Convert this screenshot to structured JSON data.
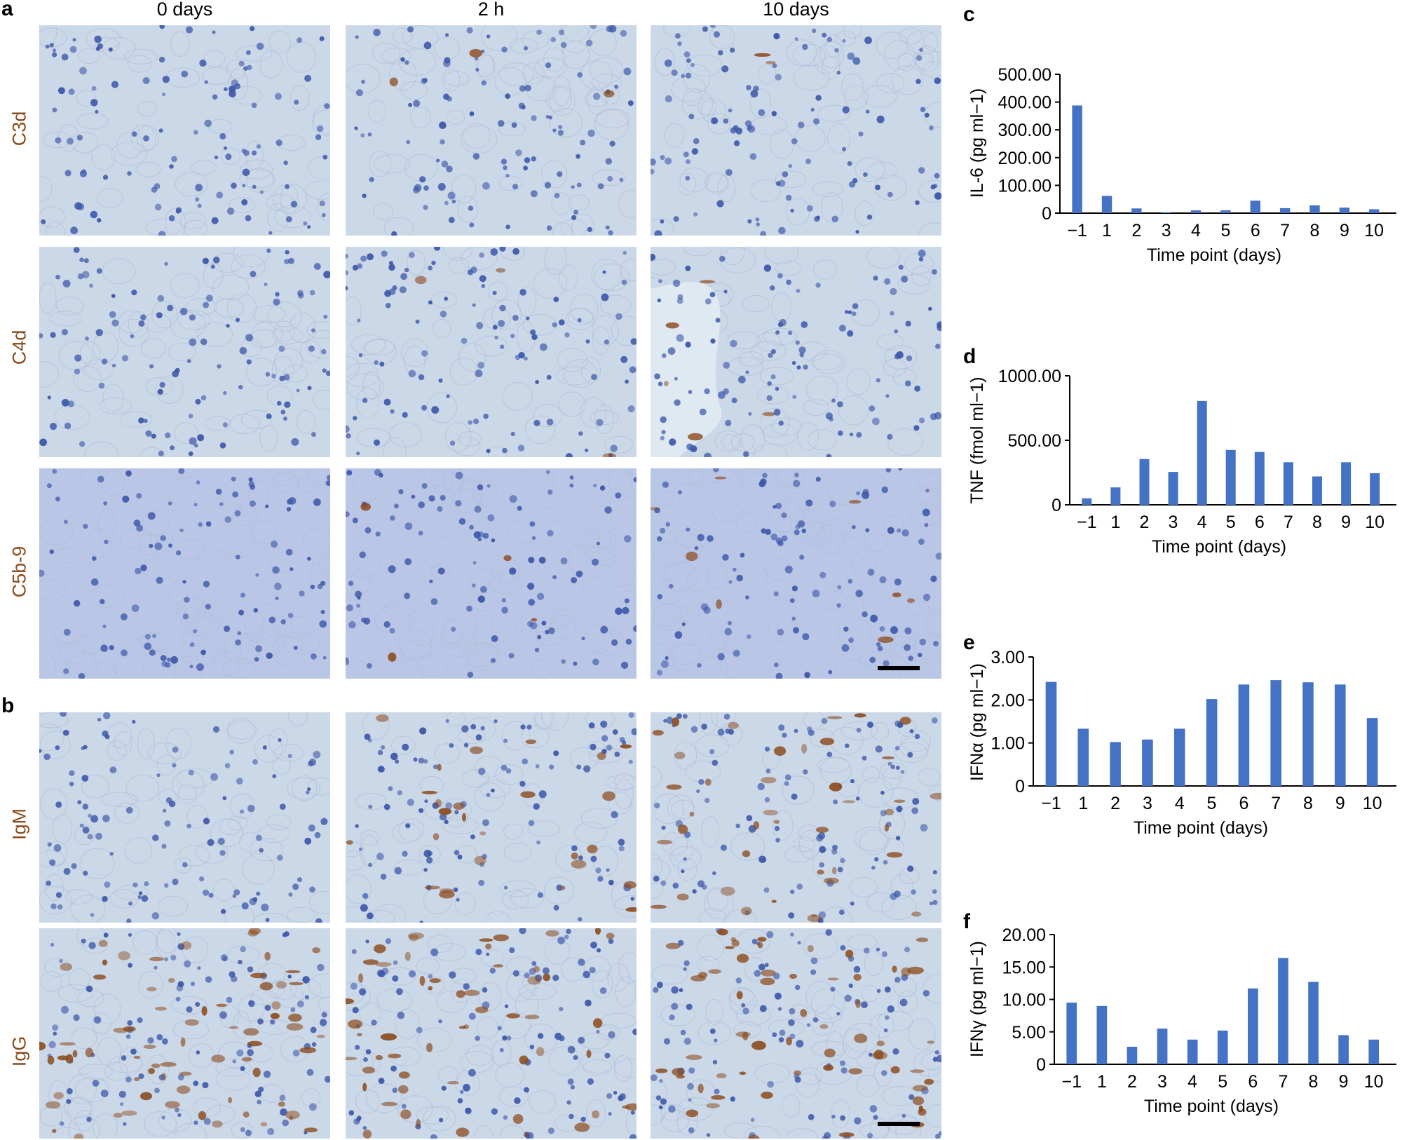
{
  "panel_a": {
    "letter": "a",
    "columns": [
      "0 days",
      "2 h",
      "10 days"
    ],
    "rows": [
      "C3d",
      "C4d",
      "C5b-9"
    ]
  },
  "panel_b": {
    "letter": "b",
    "rows": [
      "IgM",
      "IgG"
    ]
  },
  "colors": {
    "bar": "#4472c4",
    "row_label": "#8a4a1a",
    "tissue_background": "#cbd8e8",
    "nucleus": "#3d57a8",
    "stain_brown": "#8b4a1c"
  },
  "chart_data": [
    {
      "panel": "c",
      "type": "bar",
      "categories": [
        "−1",
        "1",
        "2",
        "3",
        "4",
        "5",
        "6",
        "7",
        "8",
        "9",
        "10"
      ],
      "values": [
        388,
        62,
        17,
        3,
        10,
        10,
        45,
        18,
        28,
        20,
        14
      ],
      "ylim": [
        0,
        500
      ],
      "yticks": [
        "0",
        "100.00",
        "200.00",
        "300.00",
        "400.00",
        "500.00"
      ],
      "ylabel": "IL-6 (pg ml−1)",
      "xlabel": "Time point (days)"
    },
    {
      "panel": "d",
      "type": "bar",
      "categories": [
        "−1",
        "1",
        "2",
        "3",
        "4",
        "5",
        "6",
        "7",
        "8",
        "9",
        "10"
      ],
      "values": [
        50,
        135,
        355,
        255,
        805,
        425,
        410,
        330,
        220,
        330,
        245
      ],
      "ylim": [
        0,
        1000
      ],
      "yticks": [
        "0",
        "500.00",
        "1000.00"
      ],
      "ylabel": "TNF (fmol ml−1)",
      "xlabel": "Time point (days)"
    },
    {
      "panel": "e",
      "type": "bar",
      "categories": [
        "−1",
        "1",
        "2",
        "3",
        "4",
        "5",
        "6",
        "7",
        "8",
        "9",
        "10"
      ],
      "values": [
        2.42,
        1.33,
        1.02,
        1.08,
        1.33,
        2.02,
        2.36,
        2.46,
        2.41,
        2.36,
        1.58
      ],
      "ylim": [
        0,
        3
      ],
      "yticks": [
        "0",
        "1.00",
        "2.00",
        "3.00"
      ],
      "ylabel": "IFNα (pg ml−1)",
      "xlabel": "Time point (days)"
    },
    {
      "panel": "f",
      "type": "bar",
      "categories": [
        "−1",
        "1",
        "2",
        "3",
        "4",
        "5",
        "6",
        "7",
        "8",
        "9",
        "10"
      ],
      "values": [
        9.5,
        9.0,
        2.7,
        5.5,
        3.8,
        5.2,
        11.7,
        16.4,
        12.7,
        4.5,
        3.8
      ],
      "ylim": [
        0,
        20
      ],
      "yticks": [
        "0",
        "5.00",
        "10.00",
        "15.00",
        "20.00"
      ],
      "ylabel": "IFNγ (pg ml−1)",
      "xlabel": "Time point (days)"
    }
  ]
}
